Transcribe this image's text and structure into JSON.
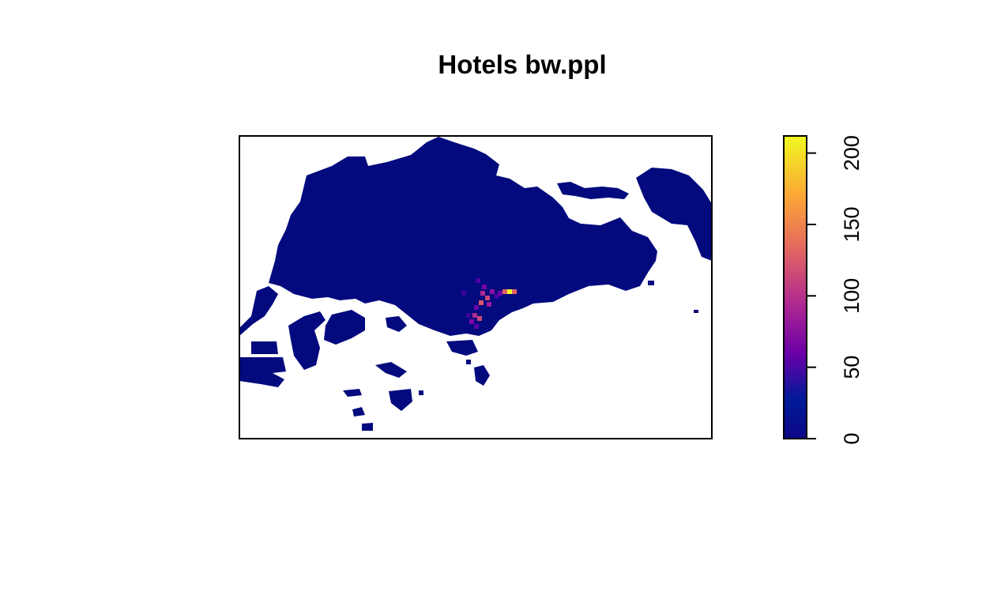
{
  "chart_data": {
    "type": "heatmap",
    "title": "Hotels bw.ppl",
    "xlabel": "",
    "ylabel": "",
    "colorbar": {
      "range": [
        0,
        212
      ],
      "ticks": [
        0,
        50,
        100,
        150,
        200
      ],
      "tick_labels": [
        "0",
        "50",
        "100",
        "150",
        "200"
      ],
      "palette": "plasma",
      "colors": [
        "#0D0887",
        "#001A99",
        "#6A00A8",
        "#B12A90",
        "#E16462",
        "#FCA636",
        "#F0F921"
      ]
    },
    "background_value_color": "#020A7E",
    "hotspots": [
      {
        "value": 212,
        "label_region": "central"
      },
      {
        "value": 150,
        "label_region": "central"
      },
      {
        "value": 110,
        "label_region": "central"
      },
      {
        "value": 90,
        "label_region": "central-south"
      },
      {
        "value": 60,
        "label_region": "central-south"
      }
    ]
  }
}
